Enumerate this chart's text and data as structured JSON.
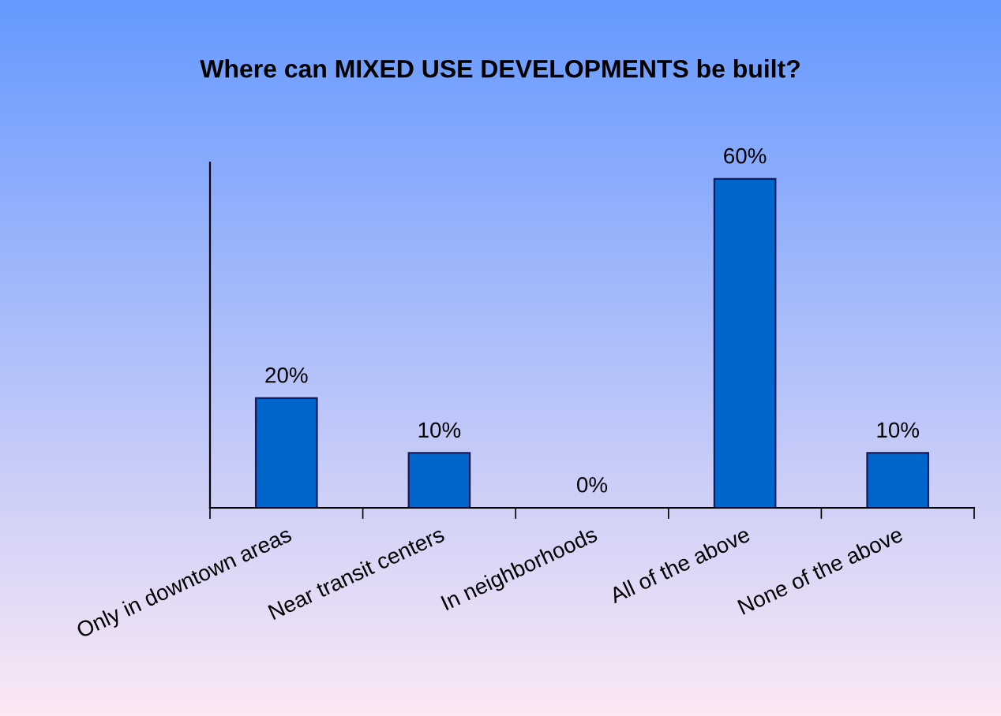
{
  "chart_data": {
    "type": "bar",
    "title": "Where can MIXED USE DEVELOPMENTS be built?",
    "categories": [
      "Only in downtown areas",
      "Near transit centers",
      "In neighborhoods",
      "All of the above",
      "None of the above"
    ],
    "values": [
      20,
      10,
      0,
      60,
      10
    ],
    "value_labels": [
      "20%",
      "10%",
      "0%",
      "60%",
      "10%"
    ],
    "color": "#0066cc",
    "grid": false,
    "legend": false
  }
}
